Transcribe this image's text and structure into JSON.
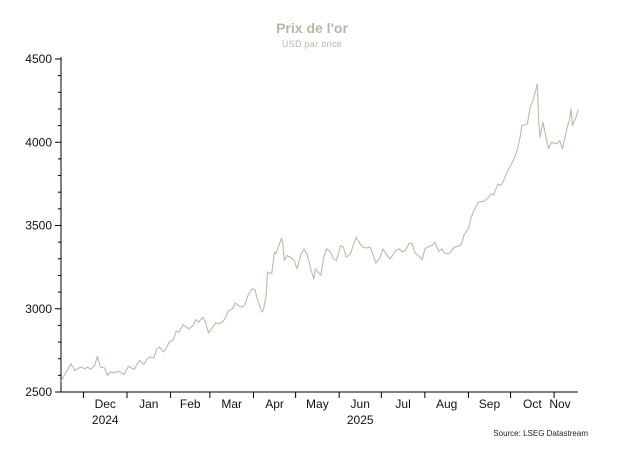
{
  "chart_data": {
    "type": "line",
    "title": "Prix de l'or",
    "subtitle": "USD par once",
    "source": "Source: LSEG Datastream",
    "ylim": [
      2500,
      4500
    ],
    "yticks": [
      2500,
      3000,
      3500,
      4000,
      4500
    ],
    "ytick_labels": [
      "2500",
      "3000",
      "3500",
      "4000",
      "4500"
    ],
    "xlim": [
      "2024-11-15",
      "2025-11-18"
    ],
    "month_ticks": [
      {
        "date": "2024-12-01",
        "label": "Dec",
        "year": "2024"
      },
      {
        "date": "2025-01-01",
        "label": "Jan",
        "year": ""
      },
      {
        "date": "2025-02-01",
        "label": "Feb",
        "year": ""
      },
      {
        "date": "2025-03-01",
        "label": "Mar",
        "year": ""
      },
      {
        "date": "2025-04-01",
        "label": "Apr",
        "year": ""
      },
      {
        "date": "2025-05-01",
        "label": "May",
        "year": ""
      },
      {
        "date": "2025-06-01",
        "label": "Jun",
        "year": "2025"
      },
      {
        "date": "2025-07-01",
        "label": "Jul",
        "year": ""
      },
      {
        "date": "2025-08-01",
        "label": "Aug",
        "year": ""
      },
      {
        "date": "2025-09-01",
        "label": "Sep",
        "year": ""
      },
      {
        "date": "2025-10-01",
        "label": "Oct",
        "year": ""
      },
      {
        "date": "2025-11-01",
        "label": "Nov",
        "year": ""
      }
    ],
    "grid": false,
    "line_color": "#c4b6a8",
    "series": [
      {
        "name": "",
        "x": [
          "2024-11-15",
          "2024-11-18",
          "2024-11-20",
          "2024-11-22",
          "2024-11-25",
          "2024-11-27",
          "2024-11-29",
          "2024-12-02",
          "2024-12-04",
          "2024-12-06",
          "2024-12-09",
          "2024-12-11",
          "2024-12-13",
          "2024-12-16",
          "2024-12-18",
          "2024-12-20",
          "2024-12-23",
          "2024-12-26",
          "2024-12-30",
          "2025-01-02",
          "2025-01-06",
          "2025-01-08",
          "2025-01-10",
          "2025-01-13",
          "2025-01-15",
          "2025-01-17",
          "2025-01-20",
          "2025-01-22",
          "2025-01-24",
          "2025-01-27",
          "2025-01-29",
          "2025-01-31",
          "2025-02-03",
          "2025-02-05",
          "2025-02-07",
          "2025-02-10",
          "2025-02-12",
          "2025-02-14",
          "2025-02-17",
          "2025-02-19",
          "2025-02-21",
          "2025-02-24",
          "2025-02-26",
          "2025-02-28",
          "2025-03-03",
          "2025-03-05",
          "2025-03-07",
          "2025-03-10",
          "2025-03-12",
          "2025-03-14",
          "2025-03-17",
          "2025-03-19",
          "2025-03-21",
          "2025-03-24",
          "2025-03-26",
          "2025-03-28",
          "2025-03-31",
          "2025-04-02",
          "2025-04-04",
          "2025-04-07",
          "2025-04-08",
          "2025-04-10",
          "2025-04-11",
          "2025-04-14",
          "2025-04-16",
          "2025-04-17",
          "2025-04-21",
          "2025-04-22",
          "2025-04-23",
          "2025-04-25",
          "2025-04-28",
          "2025-04-30",
          "2025-05-02",
          "2025-05-05",
          "2025-05-07",
          "2025-05-09",
          "2025-05-12",
          "2025-05-14",
          "2025-05-15",
          "2025-05-19",
          "2025-05-21",
          "2025-05-23",
          "2025-05-26",
          "2025-05-28",
          "2025-05-30",
          "2025-06-02",
          "2025-06-04",
          "2025-06-06",
          "2025-06-09",
          "2025-06-11",
          "2025-06-13",
          "2025-06-16",
          "2025-06-18",
          "2025-06-20",
          "2025-06-23",
          "2025-06-25",
          "2025-06-27",
          "2025-06-30",
          "2025-07-02",
          "2025-07-04",
          "2025-07-07",
          "2025-07-09",
          "2025-07-11",
          "2025-07-14",
          "2025-07-16",
          "2025-07-18",
          "2025-07-21",
          "2025-07-23",
          "2025-07-25",
          "2025-07-28",
          "2025-07-30",
          "2025-08-01",
          "2025-08-04",
          "2025-08-06",
          "2025-08-08",
          "2025-08-11",
          "2025-08-13",
          "2025-08-15",
          "2025-08-18",
          "2025-08-20",
          "2025-08-22",
          "2025-08-25",
          "2025-08-27",
          "2025-08-29",
          "2025-09-01",
          "2025-09-03",
          "2025-09-05",
          "2025-09-08",
          "2025-09-10",
          "2025-09-12",
          "2025-09-15",
          "2025-09-17",
          "2025-09-19",
          "2025-09-22",
          "2025-09-24",
          "2025-09-26",
          "2025-09-29",
          "2025-10-01",
          "2025-10-03",
          "2025-10-06",
          "2025-10-08",
          "2025-10-09",
          "2025-10-13",
          "2025-10-15",
          "2025-10-17",
          "2025-10-20",
          "2025-10-21",
          "2025-10-22",
          "2025-10-24",
          "2025-10-27",
          "2025-10-28",
          "2025-10-30",
          "2025-11-03",
          "2025-11-05",
          "2025-11-07",
          "2025-11-10",
          "2025-11-12",
          "2025-11-13",
          "2025-11-14",
          "2025-11-17",
          "2025-11-18"
        ],
        "y": [
          2565,
          2610,
          2635,
          2670,
          2630,
          2640,
          2650,
          2640,
          2650,
          2635,
          2660,
          2715,
          2650,
          2645,
          2600,
          2620,
          2615,
          2625,
          2605,
          2655,
          2635,
          2665,
          2690,
          2665,
          2695,
          2710,
          2705,
          2755,
          2770,
          2740,
          2765,
          2800,
          2815,
          2865,
          2860,
          2905,
          2890,
          2880,
          2900,
          2935,
          2920,
          2950,
          2915,
          2855,
          2890,
          2915,
          2910,
          2920,
          2945,
          2985,
          3000,
          3035,
          3020,
          3010,
          3025,
          3080,
          3120,
          3115,
          3050,
          2980,
          2990,
          3080,
          3220,
          3210,
          3340,
          3330,
          3425,
          3380,
          3290,
          3320,
          3305,
          3290,
          3240,
          3330,
          3360,
          3330,
          3230,
          3180,
          3240,
          3200,
          3310,
          3360,
          3340,
          3300,
          3290,
          3380,
          3370,
          3310,
          3330,
          3380,
          3430,
          3390,
          3370,
          3365,
          3370,
          3330,
          3275,
          3305,
          3360,
          3335,
          3300,
          3320,
          3350,
          3360,
          3340,
          3350,
          3395,
          3390,
          3335,
          3315,
          3295,
          3360,
          3375,
          3380,
          3400,
          3345,
          3360,
          3335,
          3330,
          3350,
          3370,
          3375,
          3390,
          3445,
          3480,
          3550,
          3590,
          3640,
          3645,
          3645,
          3665,
          3690,
          3685,
          3750,
          3740,
          3770,
          3830,
          3860,
          3890,
          3960,
          4040,
          4100,
          4110,
          4210,
          4250,
          4350,
          4125,
          4030,
          4120,
          4000,
          3960,
          4000,
          3990,
          4010,
          3960,
          4080,
          4140,
          4200,
          4100,
          4160,
          4195
        ],
        "note": null
      }
    ]
  }
}
